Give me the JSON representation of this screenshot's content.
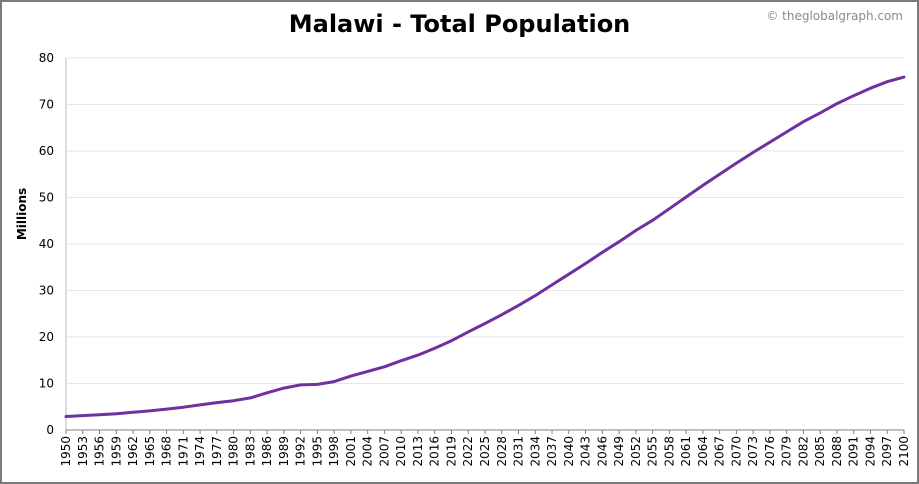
{
  "title": "Malawi - Total Population",
  "credit": "© theglobalgraph.com",
  "colors": {
    "line": "#7030a0",
    "grid": "#e6e6e6",
    "frame": "#7a7a7a"
  },
  "chart_data": {
    "type": "line",
    "title": "Malawi - Total Population",
    "ylabel": "Millions",
    "xlabel": "",
    "ylim": [
      0,
      80
    ],
    "xlim": [
      1950,
      2100
    ],
    "yticks": [
      "0",
      "10",
      "20",
      "30",
      "40",
      "50",
      "60",
      "70",
      "80"
    ],
    "xticks": [
      "1950",
      "1953",
      "1956",
      "1959",
      "1962",
      "1965",
      "1968",
      "1971",
      "1974",
      "1977",
      "1980",
      "1983",
      "1986",
      "1989",
      "1992",
      "1995",
      "1998",
      "2001",
      "2004",
      "2007",
      "2010",
      "2013",
      "2016",
      "2019",
      "2022",
      "2025",
      "2028",
      "2031",
      "2034",
      "2037",
      "2040",
      "2043",
      "2046",
      "2049",
      "2052",
      "2055",
      "2058",
      "2061",
      "2064",
      "2067",
      "2070",
      "2073",
      "2076",
      "2079",
      "2082",
      "2085",
      "2088",
      "2091",
      "2094",
      "2097",
      "2100"
    ],
    "grid": true,
    "series": [
      {
        "x": [
          1950,
          1953,
          1956,
          1959,
          1962,
          1965,
          1968,
          1971,
          1974,
          1977,
          1980,
          1983,
          1986,
          1989,
          1992,
          1995,
          1998,
          2001,
          2004,
          2007,
          2010,
          2013,
          2016,
          2019,
          2022,
          2025,
          2028,
          2031,
          2034,
          2037,
          2040,
          2043,
          2046,
          2049,
          2052,
          2055,
          2058,
          2061,
          2064,
          2067,
          2070,
          2073,
          2076,
          2079,
          2082,
          2085,
          2088,
          2091,
          2094,
          2097,
          2100
        ],
        "values": [
          2.9,
          3.1,
          3.3,
          3.5,
          3.8,
          4.1,
          4.5,
          4.9,
          5.4,
          5.9,
          6.3,
          6.9,
          8.0,
          9.0,
          9.7,
          9.8,
          10.4,
          11.6,
          12.6,
          13.6,
          14.9,
          16.1,
          17.6,
          19.2,
          21.1,
          22.9,
          24.8,
          26.8,
          28.9,
          31.2,
          33.5,
          35.8,
          38.2,
          40.5,
          42.9,
          45.1,
          47.6,
          50.1,
          52.6,
          55.0,
          57.4,
          59.7,
          61.9,
          64.1,
          66.3,
          68.2,
          70.2,
          71.9,
          73.5,
          74.9,
          75.9
        ]
      }
    ]
  }
}
